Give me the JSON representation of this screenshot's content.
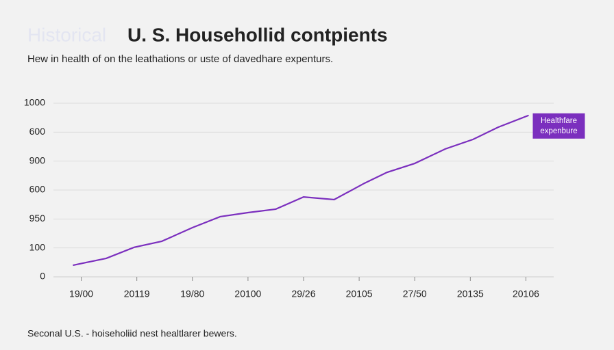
{
  "chart_data": {
    "type": "line",
    "title_prefix": "Historical",
    "title": "U. S. Househollid contpients",
    "subtitle": "Hew in health of on the leathations or uste of davedhare expenturs.",
    "annotation": [
      "Healthfare",
      "expenbure"
    ],
    "footnote": "Seconal U.S. - hoiseholiid nest healtlarer bewers.",
    "x": [
      -0.15,
      0.45,
      0.95,
      1.45,
      2,
      2.5,
      3,
      3.5,
      4,
      4.55,
      5.1,
      5.5,
      6,
      6.55,
      7.05,
      7.5,
      8.05
    ],
    "series": [
      {
        "color": "#7b2fbe",
        "values": [
          40,
          64,
          102,
          123,
          170,
          208,
          222,
          234,
          276,
          267,
          324,
          361,
          392,
          442,
          475,
          517,
          558
        ]
      }
    ],
    "xlim": [
      -0.5,
      8.5
    ],
    "xticks": [
      {
        "value": 0,
        "label": "19/00"
      },
      {
        "value": 1,
        "label": "20119"
      },
      {
        "value": 2,
        "label": "19/80"
      },
      {
        "value": 3,
        "label": "20100"
      },
      {
        "value": 4,
        "label": "29/26"
      },
      {
        "value": 5,
        "label": "20105"
      },
      {
        "value": 6,
        "label": "27/50"
      },
      {
        "value": 7,
        "label": "20135"
      },
      {
        "value": 8,
        "label": "20106"
      }
    ],
    "ylim": [
      0,
      600
    ],
    "yticks": [
      0,
      100,
      {
        "value": 200,
        "label": "950"
      },
      {
        "value": 300,
        "label": "600"
      },
      {
        "value": 400,
        "label": "900"
      },
      {
        "value": 500,
        "label": "600"
      },
      {
        "value": 600,
        "label": "1000"
      }
    ],
    "grid": true
  }
}
